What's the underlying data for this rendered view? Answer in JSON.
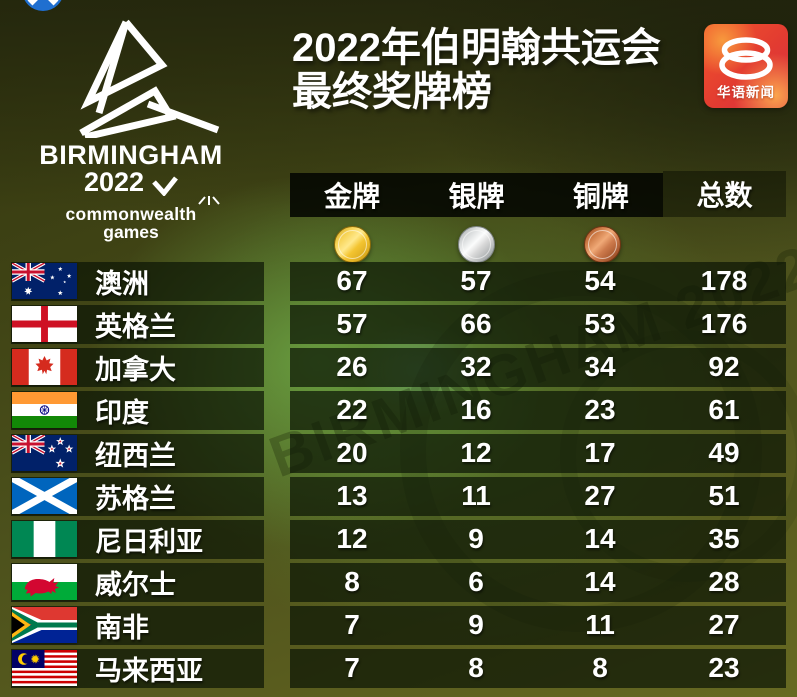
{
  "page": {
    "title_line1": "2022年伯明翰共运会",
    "title_line2": "最终奖牌榜"
  },
  "games_logo": {
    "city": "BIRMINGHAM",
    "year": "2022",
    "org_line1": "commonwealth",
    "org_line2": "games"
  },
  "channel_logo": {
    "name": "华语新闻"
  },
  "background_watermark": "BIRMINGHAM 2022",
  "colors": {
    "channel_red": "#e23b31",
    "channel_orange": "#f79a3d",
    "medal_gold": "#f3c431",
    "medal_silver": "#d9d9d9",
    "medal_bronze": "#cd7a4c",
    "bright_green": "#5d9a3c",
    "olive": "#51531d"
  },
  "chart_data": {
    "type": "table",
    "title": "2022年伯明翰共运会最终奖牌榜",
    "columns": [
      "金牌",
      "银牌",
      "铜牌",
      "总数"
    ],
    "rows": [
      {
        "country": "澳洲",
        "flag": "australia",
        "gold": 67,
        "silver": 57,
        "bronze": 54,
        "total": 178
      },
      {
        "country": "英格兰",
        "flag": "england",
        "gold": 57,
        "silver": 66,
        "bronze": 53,
        "total": 176
      },
      {
        "country": "加拿大",
        "flag": "canada",
        "gold": 26,
        "silver": 32,
        "bronze": 34,
        "total": 92
      },
      {
        "country": "印度",
        "flag": "india",
        "gold": 22,
        "silver": 16,
        "bronze": 23,
        "total": 61
      },
      {
        "country": "纽西兰",
        "flag": "new-zealand",
        "gold": 20,
        "silver": 12,
        "bronze": 17,
        "total": 49
      },
      {
        "country": "苏格兰",
        "flag": "scotland",
        "gold": 13,
        "silver": 11,
        "bronze": 27,
        "total": 51
      },
      {
        "country": "尼日利亚",
        "flag": "nigeria",
        "gold": 12,
        "silver": 9,
        "bronze": 14,
        "total": 35
      },
      {
        "country": "威尔士",
        "flag": "wales",
        "gold": 8,
        "silver": 6,
        "bronze": 14,
        "total": 28
      },
      {
        "country": "南非",
        "flag": "south-africa",
        "gold": 7,
        "silver": 9,
        "bronze": 11,
        "total": 27
      },
      {
        "country": "马来西亚",
        "flag": "malaysia",
        "gold": 7,
        "silver": 8,
        "bronze": 8,
        "total": 23
      }
    ]
  }
}
